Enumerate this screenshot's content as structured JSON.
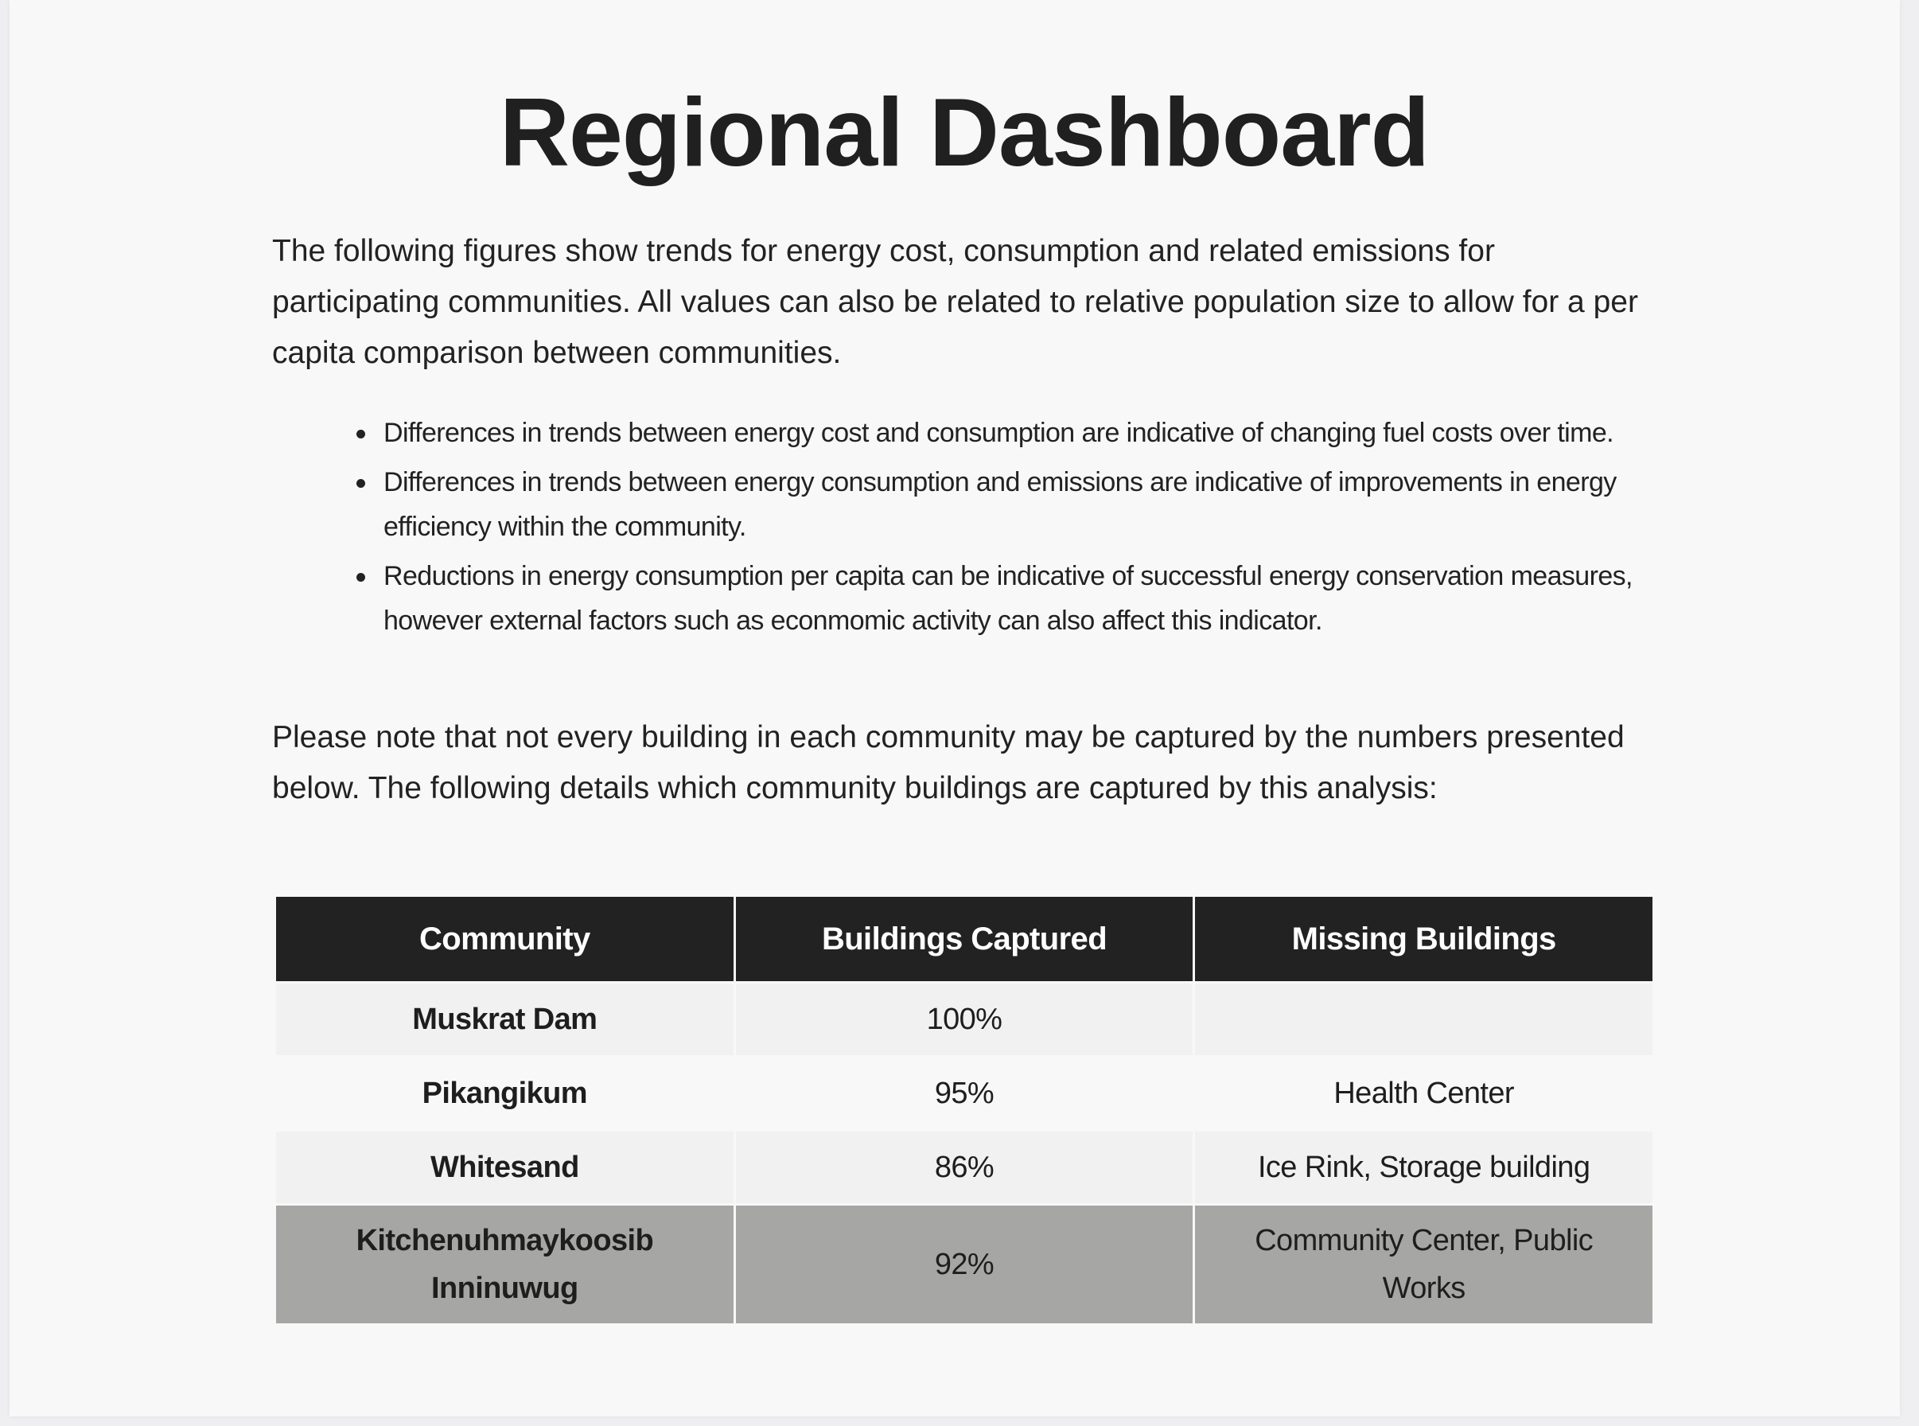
{
  "page": {
    "title": "Regional Dashboard",
    "intro": "The following figures show trends for energy cost, consumption and related emissions for participating communities. All values can also be related to relative population size to allow for a per capita comparison between communities.",
    "bullets": [
      "Differences in trends between energy cost and consumption are indicative of changing fuel costs over time.",
      "Differences in trends between energy consumption and emissions are indicative of improvements in energy efficiency within the community.",
      "Reductions in energy consumption per capita can be indicative of successful energy conservation measures, however external factors such as econmomic activity can also affect this indicator."
    ],
    "note": "Please note that not every building in each community may be captured by the numbers presented below. The following details which community buildings are captured by this analysis:"
  },
  "table": {
    "headers": [
      "Community",
      "Buildings Captured",
      "Missing Buildings"
    ],
    "rows": [
      {
        "community": "Muskrat Dam",
        "captured": "100%",
        "missing": ""
      },
      {
        "community": "Pikangikum",
        "captured": "95%",
        "missing": "Health Center"
      },
      {
        "community": "Whitesand",
        "captured": "86%",
        "missing": "Ice Rink, Storage building"
      },
      {
        "community": "Kitchenuhmaykoosib Inninuwug",
        "captured": "92%",
        "missing": "Community Center, Public Works"
      }
    ]
  },
  "colors": {
    "header_bg": "#222222",
    "row_light": "#f1f1f1",
    "row_white": "#f8f8f8",
    "row_highlight": "#a6a7a5"
  }
}
